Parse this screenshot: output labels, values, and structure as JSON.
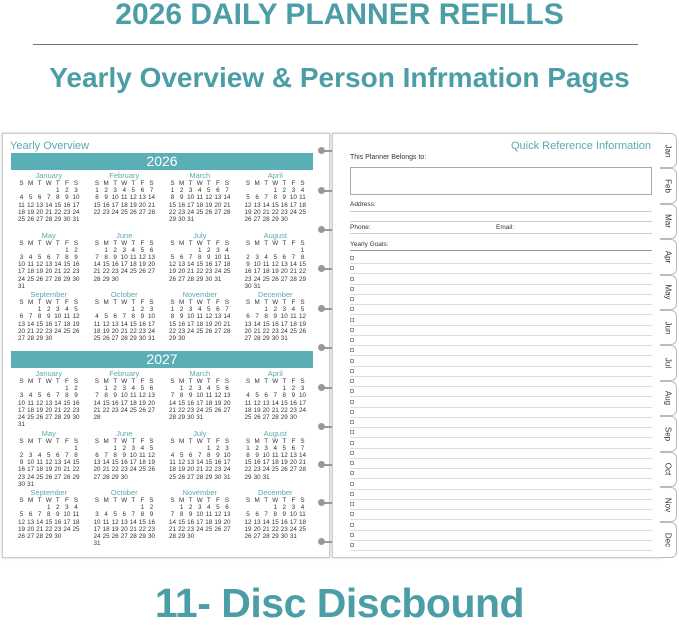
{
  "header": {
    "title": "2026 DAILY PLANNER REFILLS",
    "subtitle": "Yearly Overview & Person Infrmation Pages"
  },
  "footer": {
    "caption": "11- Disc Discbound"
  },
  "left_page": {
    "title": "Yearly Overview",
    "years": [
      "2026",
      "2027"
    ],
    "months": [
      "January",
      "February",
      "March",
      "April",
      "May",
      "June",
      "July",
      "August",
      "September",
      "October",
      "November",
      "December"
    ],
    "weekdays": [
      "S",
      "M",
      "T",
      "W",
      "T",
      "F",
      "S"
    ]
  },
  "right_page": {
    "title": "Quick Reference Information",
    "belongs_to": "This Planner Belongs to:",
    "address": "Address:",
    "phone": "Phone:",
    "email": "Email:",
    "goals": "Yearly Goals:"
  },
  "tabs": [
    "Jan",
    "Feb",
    "Mar",
    "Apr",
    "May",
    "Jun",
    "Jul",
    "Aug",
    "Sep",
    "Oct",
    "Nov",
    "Dec"
  ],
  "colors": {
    "accent": "#4b9ea6",
    "year_bar": "#5aaeb5",
    "ring": "#999999"
  }
}
